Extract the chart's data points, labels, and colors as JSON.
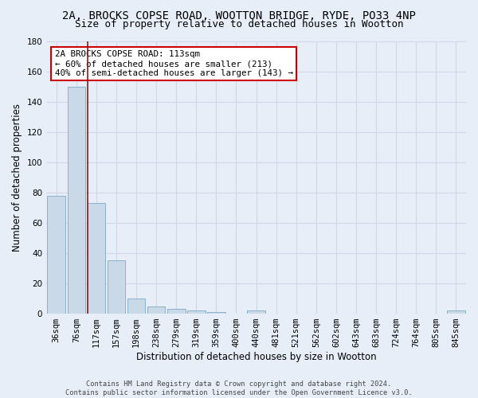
{
  "title1": "2A, BROCKS COPSE ROAD, WOOTTON BRIDGE, RYDE, PO33 4NP",
  "title2": "Size of property relative to detached houses in Wootton",
  "xlabel": "Distribution of detached houses by size in Wootton",
  "ylabel": "Number of detached properties",
  "categories": [
    "36sqm",
    "76sqm",
    "117sqm",
    "157sqm",
    "198sqm",
    "238sqm",
    "279sqm",
    "319sqm",
    "359sqm",
    "400sqm",
    "440sqm",
    "481sqm",
    "521sqm",
    "562sqm",
    "602sqm",
    "643sqm",
    "683sqm",
    "724sqm",
    "764sqm",
    "805sqm",
    "845sqm"
  ],
  "values": [
    78,
    150,
    73,
    35,
    10,
    5,
    3,
    2,
    1,
    0,
    2,
    0,
    0,
    0,
    0,
    0,
    0,
    0,
    0,
    0,
    2
  ],
  "bar_color": "#c9d9e8",
  "bar_edge_color": "#7aaac8",
  "bg_color": "#e8eef8",
  "grid_color": "#d0d8e8",
  "red_line_x": 1.55,
  "annotation_text": "2A BROCKS COPSE ROAD: 113sqm\n← 60% of detached houses are smaller (213)\n40% of semi-detached houses are larger (143) →",
  "annotation_box_color": "#ffffff",
  "annotation_box_edge": "#cc0000",
  "ylim": [
    0,
    180
  ],
  "yticks": [
    0,
    20,
    40,
    60,
    80,
    100,
    120,
    140,
    160,
    180
  ],
  "footnote": "Contains HM Land Registry data © Crown copyright and database right 2024.\nContains public sector information licensed under the Open Government Licence v3.0.",
  "title_fontsize": 10,
  "subtitle_fontsize": 9,
  "tick_fontsize": 7.5,
  "label_fontsize": 8.5
}
